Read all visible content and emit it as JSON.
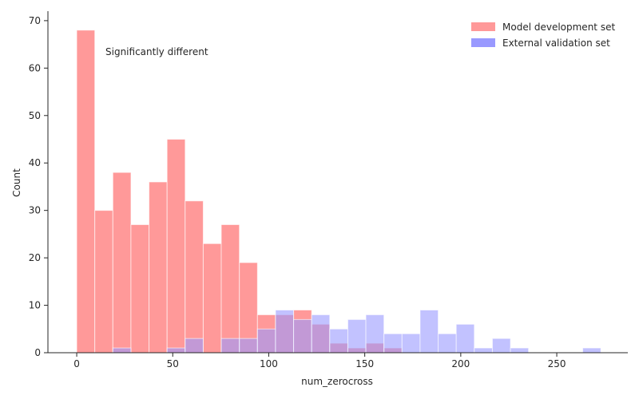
{
  "chart_data": {
    "type": "histogram",
    "xlabel": "num_zerocross",
    "ylabel": "Count",
    "annotation": "Significantly different",
    "xlim": [
      -15,
      287
    ],
    "ylim": [
      0,
      72
    ],
    "xticks": [
      0,
      50,
      100,
      150,
      200,
      250
    ],
    "yticks": [
      0,
      10,
      20,
      30,
      40,
      50,
      60,
      70
    ],
    "grid": false,
    "legend_position": "top-right",
    "bin_width": 9.41,
    "series": [
      {
        "name": "Model development set",
        "color": "#ff9999",
        "bins": [
          {
            "x0": 0.0,
            "x1": 9.41,
            "count": 68
          },
          {
            "x0": 9.41,
            "x1": 18.82,
            "count": 30
          },
          {
            "x0": 18.82,
            "x1": 28.24,
            "count": 38
          },
          {
            "x0": 28.24,
            "x1": 37.65,
            "count": 27
          },
          {
            "x0": 37.65,
            "x1": 47.06,
            "count": 36
          },
          {
            "x0": 47.06,
            "x1": 56.47,
            "count": 45
          },
          {
            "x0": 56.47,
            "x1": 65.88,
            "count": 32
          },
          {
            "x0": 65.88,
            "x1": 75.29,
            "count": 23
          },
          {
            "x0": 75.29,
            "x1": 84.71,
            "count": 27
          },
          {
            "x0": 84.71,
            "x1": 94.12,
            "count": 19
          },
          {
            "x0": 94.12,
            "x1": 103.53,
            "count": 8
          },
          {
            "x0": 103.53,
            "x1": 112.94,
            "count": 8
          },
          {
            "x0": 112.94,
            "x1": 122.35,
            "count": 9
          },
          {
            "x0": 122.35,
            "x1": 131.76,
            "count": 6
          },
          {
            "x0": 131.76,
            "x1": 141.18,
            "count": 2
          },
          {
            "x0": 141.18,
            "x1": 150.59,
            "count": 1
          },
          {
            "x0": 150.59,
            "x1": 160.0,
            "count": 2
          },
          {
            "x0": 160.0,
            "x1": 169.41,
            "count": 1
          }
        ]
      },
      {
        "name": "External validation set",
        "color": "#9999ff",
        "bins": [
          {
            "x0": 18.82,
            "x1": 28.24,
            "count": 1
          },
          {
            "x0": 47.06,
            "x1": 56.47,
            "count": 1
          },
          {
            "x0": 56.47,
            "x1": 65.88,
            "count": 3
          },
          {
            "x0": 75.29,
            "x1": 84.71,
            "count": 3
          },
          {
            "x0": 84.71,
            "x1": 94.12,
            "count": 3
          },
          {
            "x0": 94.12,
            "x1": 103.53,
            "count": 5
          },
          {
            "x0": 103.53,
            "x1": 112.94,
            "count": 9
          },
          {
            "x0": 112.94,
            "x1": 122.35,
            "count": 7
          },
          {
            "x0": 122.35,
            "x1": 131.76,
            "count": 8
          },
          {
            "x0": 131.76,
            "x1": 141.18,
            "count": 5
          },
          {
            "x0": 141.18,
            "x1": 150.59,
            "count": 7
          },
          {
            "x0": 150.59,
            "x1": 160.0,
            "count": 8
          },
          {
            "x0": 160.0,
            "x1": 169.41,
            "count": 4
          },
          {
            "x0": 169.41,
            "x1": 178.82,
            "count": 4
          },
          {
            "x0": 178.82,
            "x1": 188.24,
            "count": 9
          },
          {
            "x0": 188.24,
            "x1": 197.65,
            "count": 4
          },
          {
            "x0": 197.65,
            "x1": 207.06,
            "count": 6
          },
          {
            "x0": 207.06,
            "x1": 216.47,
            "count": 1
          },
          {
            "x0": 216.47,
            "x1": 225.88,
            "count": 3
          },
          {
            "x0": 225.88,
            "x1": 235.29,
            "count": 1
          },
          {
            "x0": 263.53,
            "x1": 272.94,
            "count": 1
          }
        ]
      }
    ]
  }
}
